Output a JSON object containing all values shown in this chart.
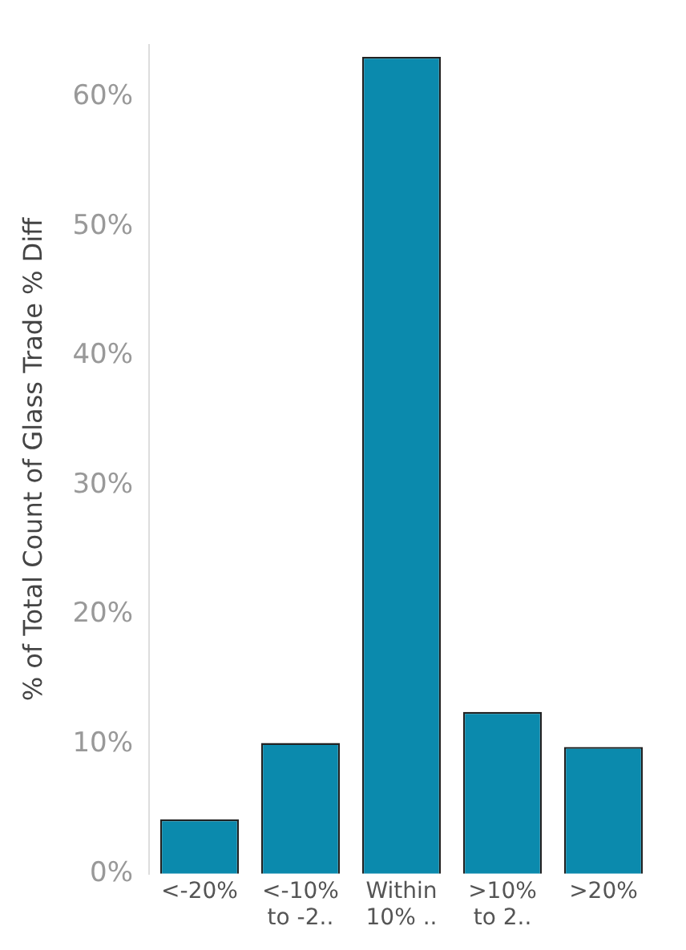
{
  "chart_data": {
    "type": "bar",
    "ylabel": "% of Total Count of Glass Trade % Diff",
    "categories": [
      "<-20%",
      "<-10% to -2..",
      "Within 10% ..",
      ">10% to 2..",
      ">20%"
    ],
    "values": [
      4.2,
      10.1,
      63.1,
      12.5,
      9.8
    ],
    "color": "#0b8aad",
    "ylim": [
      0,
      64
    ],
    "yticks": [
      {
        "value": 0,
        "label": "0%"
      },
      {
        "value": 10,
        "label": "10%"
      },
      {
        "value": 20,
        "label": "20%"
      },
      {
        "value": 30,
        "label": "30%"
      },
      {
        "value": 40,
        "label": "40%"
      },
      {
        "value": 50,
        "label": "50%"
      },
      {
        "value": 60,
        "label": "60%"
      }
    ],
    "grid": false,
    "legend": false
  }
}
